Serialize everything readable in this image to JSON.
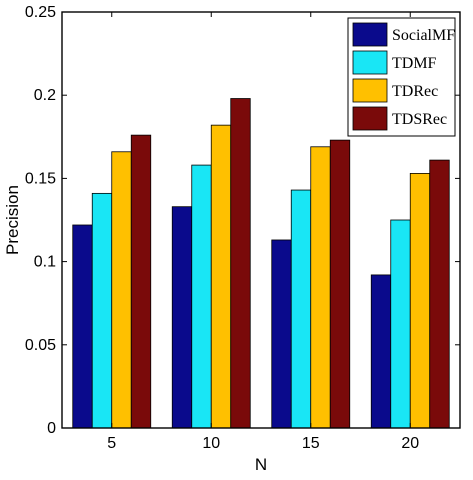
{
  "chart_data": {
    "type": "bar",
    "categories": [
      "5",
      "10",
      "15",
      "20"
    ],
    "series": [
      {
        "name": "SocialMF",
        "values": [
          0.122,
          0.133,
          0.113,
          0.092
        ],
        "color": "#0a0a8c"
      },
      {
        "name": "TDMF",
        "values": [
          0.141,
          0.158,
          0.143,
          0.125
        ],
        "color": "#19e6f5"
      },
      {
        "name": "TDRec",
        "values": [
          0.166,
          0.182,
          0.169,
          0.153
        ],
        "color": "#ffc000"
      },
      {
        "name": "TDSRec",
        "values": [
          0.176,
          0.198,
          0.173,
          0.161
        ],
        "color": "#7a0a0a"
      }
    ],
    "title": "",
    "xlabel": "N",
    "ylabel": "Precision",
    "ylim": [
      0,
      0.25
    ],
    "yticks": [
      "0",
      "0.05",
      "0.1",
      "0.15",
      "0.2",
      "0.25"
    ],
    "ytick_values": [
      0,
      0.05,
      0.1,
      0.15,
      0.2,
      0.25
    ],
    "grid": false,
    "legend_position": "top-right"
  }
}
